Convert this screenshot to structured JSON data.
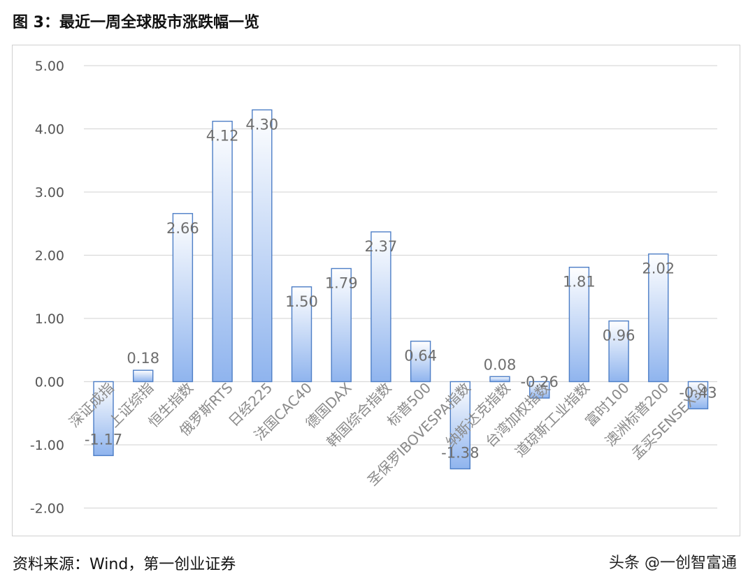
{
  "figure": {
    "title": "图 3：最近一周全球股市涨跌幅一览",
    "source": "资料来源：Wind，第一创业证券",
    "watermark": "头条 @一创智富通"
  },
  "chart_data": {
    "type": "bar",
    "title": "",
    "xlabel": "",
    "ylabel": "",
    "ylim": [
      -2,
      5
    ],
    "yticks": [
      "5.00",
      "4.00",
      "3.00",
      "2.00",
      "1.00",
      "0.00",
      "-1.00",
      "-2.00"
    ],
    "grid": true,
    "legend": "none",
    "categories": [
      "深证成指",
      "上证综指",
      "恒生指数",
      "俄罗斯RTS",
      "日经225",
      "法国CAC40",
      "德国DAX",
      "韩国综合指数",
      "标普500",
      "圣保罗IBOVESPA指数",
      "纳斯达克指数",
      "台湾加权指数",
      "道琼斯工业指数",
      "富时100",
      "澳洲标普200",
      "孟买SENSEX30"
    ],
    "values": [
      -1.17,
      0.18,
      2.66,
      4.12,
      4.3,
      1.5,
      1.79,
      2.37,
      0.64,
      -1.38,
      0.08,
      -0.26,
      1.81,
      0.96,
      2.02,
      -0.43
    ],
    "value_labels": [
      "-1.17",
      "0.18",
      "2.66",
      "4.12",
      "4.30",
      "1.50",
      "1.79",
      "2.37",
      "0.64",
      "-1.38",
      "0.08",
      "-0.26",
      "1.81",
      "0.96",
      "2.02",
      "-0.43"
    ],
    "colors": {
      "bar_top": "#ffffff",
      "bar_bottom": "#8fb4ee",
      "bar_border": "#4d7ec6",
      "grid": "#d9d9d9"
    }
  }
}
